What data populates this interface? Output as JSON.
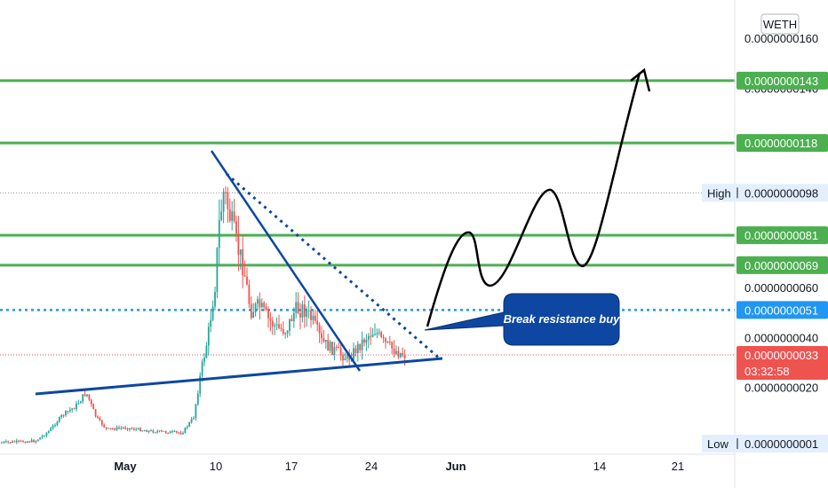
{
  "chart_data": {
    "type": "candlestick",
    "currency_label": "WETH",
    "y_ticks": [
      {
        "value": 1.6e-08,
        "label": "0.0000000160"
      },
      {
        "value": 1.4e-08,
        "label": "0.0000000140"
      },
      {
        "value": 6e-09,
        "label": "0.0000000060"
      },
      {
        "value": 4e-09,
        "label": "0.0000000040"
      },
      {
        "value": 2e-09,
        "label": "0.0000000020"
      }
    ],
    "x_ticks": [
      {
        "label": "May",
        "bold": true
      },
      {
        "label": "10",
        "bold": false
      },
      {
        "label": "17",
        "bold": false
      },
      {
        "label": "24",
        "bold": false
      },
      {
        "label": "Jun",
        "bold": true
      },
      {
        "label": "14",
        "bold": false
      },
      {
        "label": "21",
        "bold": false
      }
    ],
    "resistance_levels": [
      {
        "value": 1.43e-08,
        "label": "0.0000000143"
      },
      {
        "value": 1.18e-08,
        "label": "0.0000000118"
      },
      {
        "value": 8.1e-09,
        "label": "0.0000000081"
      },
      {
        "value": 6.9e-09,
        "label": "0.0000000069"
      }
    ],
    "high": {
      "prefix": "High",
      "value": 9.8e-09,
      "label": "0.0000000098"
    },
    "low": {
      "prefix": "Low",
      "value": 1e-10,
      "label": "0.0000000001"
    },
    "breakout_level": {
      "value": 5.1e-09,
      "label": "0.0000000051"
    },
    "last_price": {
      "value": 3.3e-09,
      "label": "0.0000000033",
      "countdown": "03:32:58"
    },
    "colors": {
      "up": "#26a69a",
      "down": "#ef5350",
      "resistance": "#4caf50",
      "breakout": "#2196f3",
      "trendline": "#0d47a1",
      "callout": "#0d47a1",
      "projection": "#000000"
    },
    "annotation": {
      "text": "Break resistance buy"
    }
  }
}
